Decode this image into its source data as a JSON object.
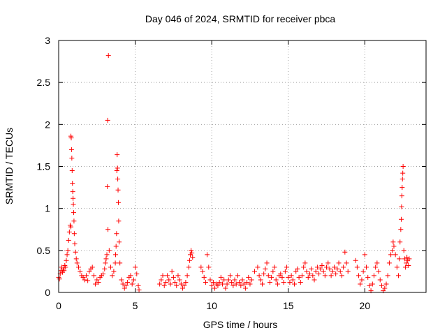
{
  "chart_data": {
    "type": "scatter",
    "title": "Day 046 of 2024, SRMTID for receiver pbca",
    "xlabel": "GPS time / hours",
    "ylabel": "SRMTID / TECUs",
    "xlim": [
      0,
      24
    ],
    "ylim": [
      0,
      3
    ],
    "xticks": [
      0,
      5,
      10,
      15,
      20
    ],
    "yticks": [
      0,
      0.5,
      1,
      1.5,
      2,
      2.5,
      3
    ],
    "grid": true,
    "marker": "+",
    "color": "#ff0000",
    "series": [
      {
        "name": "SRMTID",
        "points": [
          [
            0.0,
            0.18
          ],
          [
            0.05,
            0.16
          ],
          [
            0.1,
            0.22
          ],
          [
            0.15,
            0.26
          ],
          [
            0.2,
            0.3
          ],
          [
            0.25,
            0.24
          ],
          [
            0.3,
            0.28
          ],
          [
            0.35,
            0.26
          ],
          [
            0.4,
            0.32
          ],
          [
            0.45,
            0.3
          ],
          [
            0.5,
            0.38
          ],
          [
            0.55,
            0.45
          ],
          [
            0.6,
            0.5
          ],
          [
            0.65,
            0.62
          ],
          [
            0.7,
            0.72
          ],
          [
            0.75,
            0.8
          ],
          [
            0.8,
            0.78
          ],
          [
            0.8,
            1.86
          ],
          [
            0.82,
            1.84
          ],
          [
            0.84,
            1.7
          ],
          [
            0.86,
            1.6
          ],
          [
            0.88,
            1.45
          ],
          [
            0.9,
            1.3
          ],
          [
            0.92,
            1.2
          ],
          [
            0.94,
            1.12
          ],
          [
            0.96,
            1.05
          ],
          [
            0.98,
            0.95
          ],
          [
            1.0,
            0.85
          ],
          [
            1.02,
            0.7
          ],
          [
            1.05,
            0.58
          ],
          [
            1.1,
            0.48
          ],
          [
            1.15,
            0.4
          ],
          [
            1.2,
            0.35
          ],
          [
            1.3,
            0.3
          ],
          [
            1.4,
            0.25
          ],
          [
            1.5,
            0.2
          ],
          [
            1.6,
            0.18
          ],
          [
            1.7,
            0.15
          ],
          [
            1.8,
            0.2
          ],
          [
            1.9,
            0.14
          ],
          [
            2.0,
            0.25
          ],
          [
            2.1,
            0.28
          ],
          [
            2.2,
            0.3
          ],
          [
            2.3,
            0.2
          ],
          [
            2.4,
            0.1
          ],
          [
            2.5,
            0.15
          ],
          [
            2.6,
            0.12
          ],
          [
            2.7,
            0.18
          ],
          [
            2.8,
            0.2
          ],
          [
            2.9,
            0.22
          ],
          [
            3.0,
            0.28
          ],
          [
            3.05,
            0.35
          ],
          [
            3.1,
            0.4
          ],
          [
            3.15,
            0.45
          ],
          [
            3.18,
            1.26
          ],
          [
            3.2,
            2.05
          ],
          [
            3.22,
            0.75
          ],
          [
            3.25,
            2.82
          ],
          [
            3.3,
            0.5
          ],
          [
            3.4,
            0.3
          ],
          [
            3.5,
            0.2
          ],
          [
            3.6,
            0.25
          ],
          [
            3.7,
            0.35
          ],
          [
            3.72,
            0.45
          ],
          [
            3.75,
            0.55
          ],
          [
            3.78,
            0.7
          ],
          [
            3.8,
            1.45
          ],
          [
            3.82,
            1.64
          ],
          [
            3.84,
            1.48
          ],
          [
            3.86,
            1.35
          ],
          [
            3.88,
            1.22
          ],
          [
            3.9,
            1.07
          ],
          [
            3.92,
            0.85
          ],
          [
            3.95,
            0.6
          ],
          [
            4.0,
            0.35
          ],
          [
            4.1,
            0.15
          ],
          [
            4.2,
            0.1
          ],
          [
            4.3,
            0.05
          ],
          [
            4.4,
            0.08
          ],
          [
            4.5,
            0.12
          ],
          [
            4.6,
            0.18
          ],
          [
            4.7,
            0.2
          ],
          [
            4.8,
            0.1
          ],
          [
            4.9,
            0.15
          ],
          [
            5.0,
            0.3
          ],
          [
            5.1,
            0.22
          ],
          [
            5.2,
            0.08
          ],
          [
            5.25,
            0.03
          ],
          [
            6.6,
            0.1
          ],
          [
            6.7,
            0.15
          ],
          [
            6.8,
            0.2
          ],
          [
            6.9,
            0.08
          ],
          [
            7.0,
            0.12
          ],
          [
            7.1,
            0.2
          ],
          [
            7.2,
            0.15
          ],
          [
            7.3,
            0.1
          ],
          [
            7.4,
            0.25
          ],
          [
            7.5,
            0.18
          ],
          [
            7.6,
            0.12
          ],
          [
            7.7,
            0.08
          ],
          [
            7.8,
            0.2
          ],
          [
            7.9,
            0.15
          ],
          [
            8.0,
            0.1
          ],
          [
            8.1,
            0.05
          ],
          [
            8.2,
            0.08
          ],
          [
            8.3,
            0.12
          ],
          [
            8.4,
            0.2
          ],
          [
            8.5,
            0.3
          ],
          [
            8.55,
            0.38
          ],
          [
            8.6,
            0.45
          ],
          [
            8.65,
            0.5
          ],
          [
            8.7,
            0.47
          ],
          [
            8.75,
            0.42
          ],
          [
            9.3,
            0.3
          ],
          [
            9.4,
            0.25
          ],
          [
            9.5,
            0.18
          ],
          [
            9.6,
            0.12
          ],
          [
            9.7,
            0.45
          ],
          [
            9.8,
            0.3
          ],
          [
            9.9,
            0.15
          ],
          [
            10.0,
            0.08
          ],
          [
            10.1,
            0.12
          ],
          [
            10.2,
            0.05
          ],
          [
            10.3,
            0.1
          ],
          [
            10.4,
            0.08
          ],
          [
            10.5,
            0.12
          ],
          [
            10.6,
            0.18
          ],
          [
            10.7,
            0.1
          ],
          [
            10.8,
            0.15
          ],
          [
            10.9,
            0.05
          ],
          [
            11.0,
            0.1
          ],
          [
            11.1,
            0.15
          ],
          [
            11.2,
            0.2
          ],
          [
            11.3,
            0.12
          ],
          [
            11.4,
            0.08
          ],
          [
            11.5,
            0.15
          ],
          [
            11.6,
            0.1
          ],
          [
            11.7,
            0.2
          ],
          [
            11.8,
            0.12
          ],
          [
            11.9,
            0.08
          ],
          [
            12.0,
            0.15
          ],
          [
            12.1,
            0.1
          ],
          [
            12.2,
            0.05
          ],
          [
            12.3,
            0.12
          ],
          [
            12.4,
            0.18
          ],
          [
            12.5,
            0.1
          ],
          [
            12.6,
            0.15
          ],
          [
            12.8,
            0.25
          ],
          [
            13.0,
            0.3
          ],
          [
            13.1,
            0.2
          ],
          [
            13.2,
            0.15
          ],
          [
            13.3,
            0.1
          ],
          [
            13.4,
            0.22
          ],
          [
            13.5,
            0.28
          ],
          [
            13.6,
            0.35
          ],
          [
            13.7,
            0.2
          ],
          [
            13.8,
            0.12
          ],
          [
            13.9,
            0.18
          ],
          [
            14.0,
            0.25
          ],
          [
            14.1,
            0.3
          ],
          [
            14.2,
            0.15
          ],
          [
            14.3,
            0.1
          ],
          [
            14.4,
            0.2
          ],
          [
            14.5,
            0.22
          ],
          [
            14.6,
            0.18
          ],
          [
            14.7,
            0.12
          ],
          [
            14.8,
            0.25
          ],
          [
            14.9,
            0.3
          ],
          [
            15.0,
            0.18
          ],
          [
            15.1,
            0.12
          ],
          [
            15.2,
            0.2
          ],
          [
            15.3,
            0.15
          ],
          [
            15.4,
            0.1
          ],
          [
            15.5,
            0.25
          ],
          [
            15.6,
            0.28
          ],
          [
            15.7,
            0.18
          ],
          [
            15.8,
            0.12
          ],
          [
            15.9,
            0.2
          ],
          [
            16.0,
            0.3
          ],
          [
            16.1,
            0.35
          ],
          [
            16.2,
            0.25
          ],
          [
            16.3,
            0.18
          ],
          [
            16.4,
            0.22
          ],
          [
            16.5,
            0.28
          ],
          [
            16.6,
            0.2
          ],
          [
            16.7,
            0.15
          ],
          [
            16.8,
            0.25
          ],
          [
            16.9,
            0.3
          ],
          [
            17.0,
            0.22
          ],
          [
            17.1,
            0.28
          ],
          [
            17.2,
            0.32
          ],
          [
            17.3,
            0.25
          ],
          [
            17.4,
            0.2
          ],
          [
            17.5,
            0.3
          ],
          [
            17.6,
            0.35
          ],
          [
            17.7,
            0.28
          ],
          [
            17.8,
            0.2
          ],
          [
            17.9,
            0.25
          ],
          [
            18.0,
            0.3
          ],
          [
            18.1,
            0.22
          ],
          [
            18.2,
            0.28
          ],
          [
            18.3,
            0.35
          ],
          [
            18.4,
            0.25
          ],
          [
            18.5,
            0.2
          ],
          [
            18.6,
            0.3
          ],
          [
            18.7,
            0.48
          ],
          [
            18.8,
            0.35
          ],
          [
            18.9,
            0.25
          ],
          [
            19.4,
            0.38
          ],
          [
            19.5,
            0.3
          ],
          [
            19.6,
            0.2
          ],
          [
            19.7,
            0.1
          ],
          [
            19.8,
            0.15
          ],
          [
            19.9,
            0.25
          ],
          [
            20.0,
            0.45
          ],
          [
            20.1,
            0.3
          ],
          [
            20.2,
            0.18
          ],
          [
            20.3,
            0.08
          ],
          [
            20.4,
            0.02
          ],
          [
            20.5,
            0.1
          ],
          [
            20.6,
            0.2
          ],
          [
            20.7,
            0.3
          ],
          [
            20.8,
            0.35
          ],
          [
            20.9,
            0.25
          ],
          [
            21.0,
            0.15
          ],
          [
            21.1,
            0.08
          ],
          [
            21.2,
            0.02
          ],
          [
            21.3,
            0.05
          ],
          [
            21.4,
            0.1
          ],
          [
            21.5,
            0.2
          ],
          [
            21.6,
            0.35
          ],
          [
            21.7,
            0.45
          ],
          [
            21.8,
            0.5
          ],
          [
            21.85,
            0.6
          ],
          [
            21.9,
            0.55
          ],
          [
            22.0,
            0.45
          ],
          [
            22.1,
            0.3
          ],
          [
            22.2,
            0.2
          ],
          [
            22.25,
            0.4
          ],
          [
            22.3,
            0.6
          ],
          [
            22.35,
            0.75
          ],
          [
            22.38,
            0.87
          ],
          [
            22.4,
            1.02
          ],
          [
            22.42,
            1.15
          ],
          [
            22.44,
            1.25
          ],
          [
            22.46,
            1.35
          ],
          [
            22.48,
            1.42
          ],
          [
            22.5,
            1.5
          ],
          [
            22.55,
            0.5
          ],
          [
            22.6,
            0.4
          ],
          [
            22.65,
            0.3
          ],
          [
            22.7,
            0.35
          ],
          [
            22.75,
            0.42
          ],
          [
            22.8,
            0.38
          ],
          [
            22.85,
            0.32
          ],
          [
            22.9,
            0.4
          ]
        ]
      }
    ]
  }
}
